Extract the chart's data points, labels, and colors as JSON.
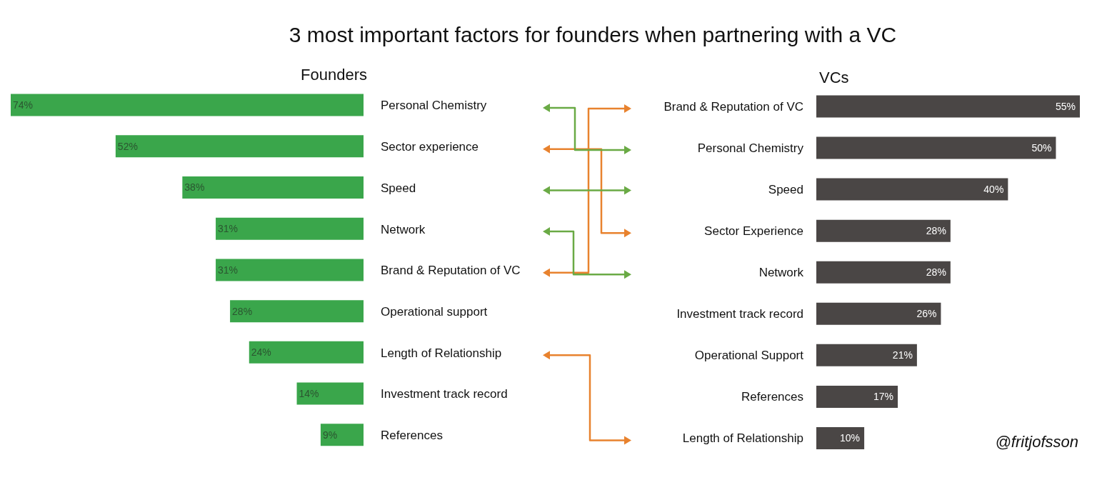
{
  "chart_data": [
    {
      "type": "bar",
      "orientation": "horizontal",
      "title": "3 most important factors for founders when partnering with a VC",
      "subtitle": "Founders",
      "categories": [
        "Personal Chemistry",
        "Sector experience",
        "Speed",
        "Network",
        "Brand & Reputation of VC",
        "Operational support",
        "Length of Relationship",
        "Investment track record",
        "References"
      ],
      "values": [
        74,
        52,
        38,
        31,
        31,
        28,
        24,
        14,
        9
      ],
      "color": "#3aa64b",
      "value_labels": [
        "74%",
        "52%",
        "38%",
        "31%",
        "31%",
        "28%",
        "24%",
        "14%",
        "9%"
      ],
      "tick_labels": "y"
    },
    {
      "type": "bar",
      "orientation": "horizontal",
      "title": "VCs",
      "categories": [
        "Brand & Reputation of VC",
        "Personal Chemistry",
        "Speed",
        "Sector Experience",
        "Network",
        "Investment track record",
        "Operational Support",
        "References",
        "Length of Relationship"
      ],
      "values": [
        55,
        50,
        40,
        28,
        28,
        26,
        21,
        17,
        10
      ],
      "color": "#4a4645",
      "value_labels": [
        "55%",
        "50%",
        "40%",
        "28%",
        "28%",
        "26%",
        "21%",
        "17%",
        "10%"
      ],
      "tick_labels": "y",
      "annotations": [
        "@fritjofsson"
      ]
    }
  ]
}
